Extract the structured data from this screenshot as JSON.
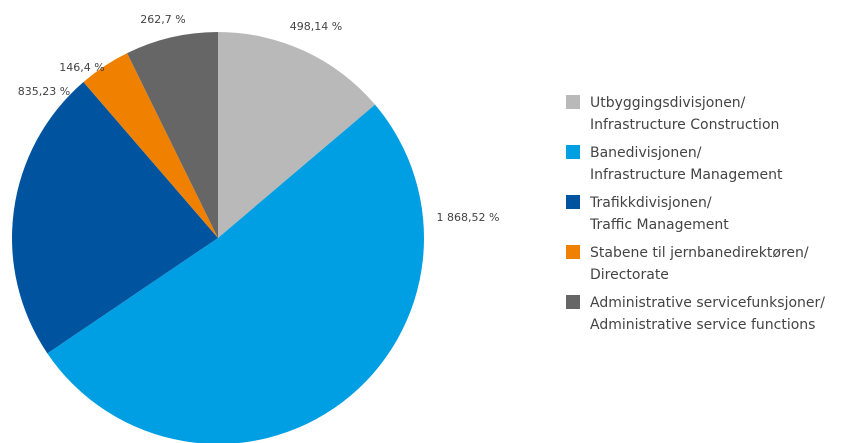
{
  "chart_data": {
    "type": "pie",
    "series": [
      {
        "name": "Utbyggingsdivisjonen/\nInfrastructure Construction",
        "color": "#b9b9b9",
        "values": [
          498.14
        ],
        "value_labels": [
          "498,14 %"
        ]
      },
      {
        "name": "Banedivisjonen/\nInfrastructure Management",
        "color": "#009fe3",
        "values": [
          1868.52
        ],
        "value_labels": [
          "1 868,52 %"
        ]
      },
      {
        "name": "Trafikkdivisjonen/\nTraffic Management",
        "color": "#00549f",
        "values": [
          835.23
        ],
        "value_labels": [
          "835,23 %"
        ]
      },
      {
        "name": "Stabene til jernbanedirektøren/\nDirectorate",
        "color": "#f08100",
        "values": [
          146.4
        ],
        "value_labels": [
          "146,4 %"
        ]
      },
      {
        "name": "Administrative servicefunksjoner/\nAdministrative service functions",
        "color": "#666666",
        "values": [
          262.7
        ],
        "value_labels": [
          "262,7 %"
        ]
      }
    ],
    "legend": "right"
  }
}
